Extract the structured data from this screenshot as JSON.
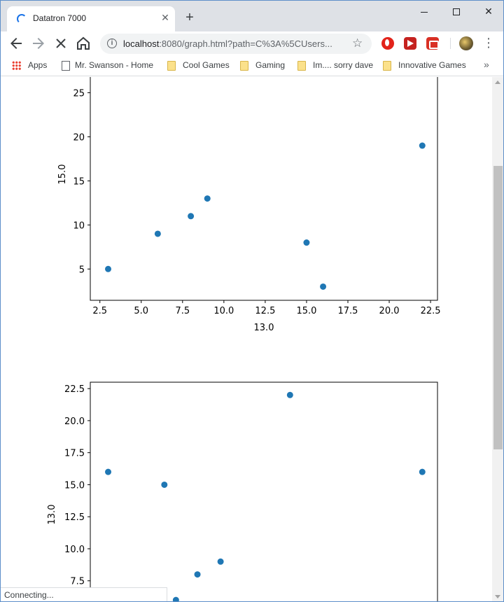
{
  "browser": {
    "tab_title": "Datatron 7000",
    "tab_close_glyph": "✕",
    "new_tab_glyph": "+",
    "window_close_glyph": "✕",
    "url_host": "localhost",
    "url_rest": ":8080/graph.html?path=C%3A%5CUsers...",
    "bookmarks": [
      {
        "label": "Apps",
        "icon": "apps-grid-icon"
      },
      {
        "label": "Mr. Swanson - Home",
        "icon": "page-icon"
      },
      {
        "label": "Cool Games",
        "icon": "folder-icon"
      },
      {
        "label": "Gaming",
        "icon": "folder-icon"
      },
      {
        "label": "Im.... sorry dave",
        "icon": "folder-icon"
      },
      {
        "label": "Innovative Games",
        "icon": "folder-icon"
      }
    ],
    "bookmarks_more": "»",
    "status_text": "Connecting..."
  },
  "chart_data": [
    {
      "type": "scatter",
      "xlabel": "13.0",
      "ylabel": "15.0",
      "color": "#1f77b4",
      "x": [
        3,
        6,
        8,
        9,
        15,
        16,
        22
      ],
      "y": [
        5,
        9,
        11,
        13,
        8,
        3,
        19
      ],
      "xticks": [
        "2.5",
        "5.0",
        "7.5",
        "10.0",
        "12.5",
        "15.0",
        "17.5",
        "20.0",
        "22.5"
      ],
      "yticks": [
        "5",
        "10",
        "15",
        "20",
        "25"
      ]
    },
    {
      "type": "scatter",
      "xlabel": "",
      "ylabel": "13.0",
      "color": "#1f77b4",
      "x": [
        3,
        6.4,
        7.1,
        8.4,
        9.8,
        14,
        22
      ],
      "y": [
        16,
        15,
        6,
        8,
        9,
        22,
        16
      ],
      "yticks": [
        "7.5",
        "10.0",
        "12.5",
        "15.0",
        "17.5",
        "20.0",
        "22.5"
      ]
    }
  ]
}
